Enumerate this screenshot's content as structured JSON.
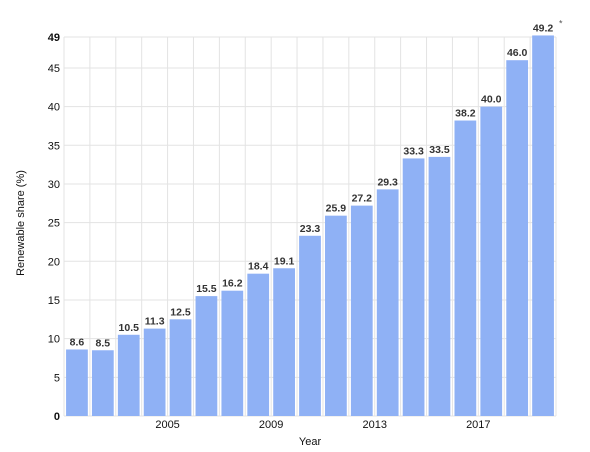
{
  "chart_data": {
    "type": "bar",
    "categories": [
      "2001",
      "2002",
      "2003",
      "2004",
      "2005",
      "2006",
      "2007",
      "2008",
      "2009",
      "2010",
      "2011",
      "2012",
      "2013",
      "2014",
      "2015",
      "2016",
      "2017",
      "2018",
      "2019"
    ],
    "values": [
      8.6,
      8.5,
      10.5,
      11.3,
      12.5,
      15.5,
      16.2,
      18.4,
      19.1,
      23.3,
      25.9,
      27.2,
      29.3,
      33.3,
      33.5,
      38.2,
      40.0,
      46.0,
      49.2
    ],
    "value_labels": [
      "8.6",
      "8.5",
      "10.5",
      "11.3",
      "12.5",
      "15.5",
      "16.2",
      "18.4",
      "19.1",
      "23.3",
      "25.9",
      "27.2",
      "29.3",
      "33.3",
      "33.5",
      "38.2",
      "40.0",
      "46.0",
      "49.2"
    ],
    "annotations": [
      {
        "category_index": 18,
        "text": "*"
      }
    ],
    "xlabel": "Year",
    "ylabel": "Renewable share (%)",
    "ylim": [
      0,
      49
    ],
    "y_ticks": [
      0,
      5,
      10,
      15,
      20,
      25,
      30,
      35,
      40,
      45,
      49
    ],
    "y_ticks_bold": [
      0,
      49
    ],
    "x_tick_labels": [
      {
        "category": "2005",
        "label": "2005"
      },
      {
        "category": "2009",
        "label": "2009"
      },
      {
        "category": "2013",
        "label": "2013"
      },
      {
        "category": "2017",
        "label": "2017"
      }
    ],
    "grid": true,
    "bar_color": "#8fb1f5",
    "grid_color": "#e3e3e3"
  }
}
